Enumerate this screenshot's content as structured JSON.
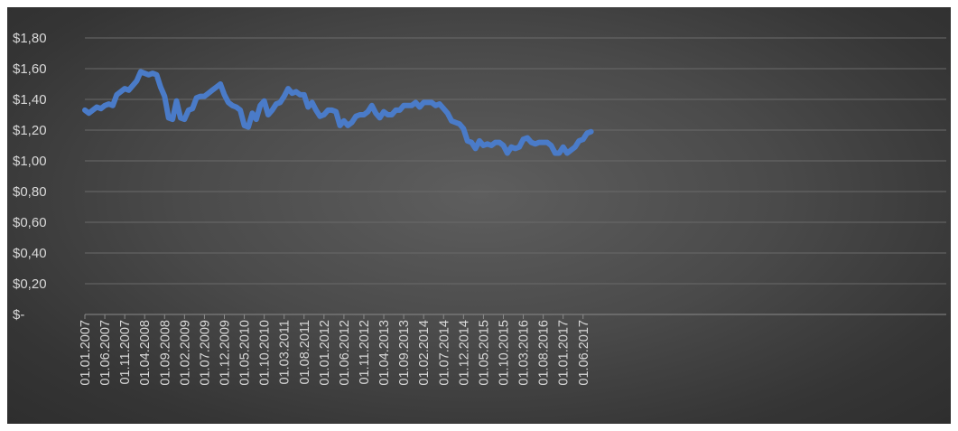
{
  "chart_data": {
    "type": "line",
    "title": "",
    "xlabel": "",
    "ylabel": "",
    "ylim": [
      0,
      1.8
    ],
    "grid": true,
    "legend": "none",
    "line_color": "#4a7bc8",
    "y_tick_labels": [
      "$-",
      "$0,20",
      "$0,40",
      "$0,60",
      "$0,80",
      "$1,00",
      "$1,20",
      "$1,40",
      "$1,60",
      "$1,80"
    ],
    "y_tick_values": [
      0,
      0.2,
      0.4,
      0.6,
      0.8,
      1.0,
      1.2,
      1.4,
      1.6,
      1.8
    ],
    "x_tick_labels": [
      "01.01.2007",
      "01.06.2007",
      "01.11.2007",
      "01.04.2008",
      "01.09.2008",
      "01.02.2009",
      "01.07.2009",
      "01.12.2009",
      "01.05.2010",
      "01.10.2010",
      "01.03.2011",
      "01.08.2011",
      "01.01.2012",
      "01.06.2012",
      "01.11.2012",
      "01.04.2013",
      "01.09.2013",
      "01.02.2014",
      "01.07.2014",
      "01.12.2014",
      "01.05.2015",
      "01.10.2015",
      "01.03.2016",
      "01.08.2016",
      "01.01.2017",
      "01.06.2017"
    ],
    "series": [
      {
        "values": [
          [
            "2007-01",
            1.33
          ],
          [
            "2007-02",
            1.31
          ],
          [
            "2007-03",
            1.33
          ],
          [
            "2007-04",
            1.35
          ],
          [
            "2007-05",
            1.34
          ],
          [
            "2007-06",
            1.36
          ],
          [
            "2007-07",
            1.37
          ],
          [
            "2007-08",
            1.36
          ],
          [
            "2007-09",
            1.43
          ],
          [
            "2007-10",
            1.45
          ],
          [
            "2007-11",
            1.47
          ],
          [
            "2007-12",
            1.46
          ],
          [
            "2008-01",
            1.49
          ],
          [
            "2008-02",
            1.52
          ],
          [
            "2008-03",
            1.58
          ],
          [
            "2008-04",
            1.57
          ],
          [
            "2008-05",
            1.56
          ],
          [
            "2008-06",
            1.57
          ],
          [
            "2008-07",
            1.56
          ],
          [
            "2008-08",
            1.48
          ],
          [
            "2008-09",
            1.42
          ],
          [
            "2008-10",
            1.28
          ],
          [
            "2008-11",
            1.27
          ],
          [
            "2008-12",
            1.39
          ],
          [
            "2009-01",
            1.28
          ],
          [
            "2009-02",
            1.27
          ],
          [
            "2009-03",
            1.33
          ],
          [
            "2009-04",
            1.34
          ],
          [
            "2009-05",
            1.41
          ],
          [
            "2009-06",
            1.42
          ],
          [
            "2009-07",
            1.42
          ],
          [
            "2009-08",
            1.44
          ],
          [
            "2009-09",
            1.46
          ],
          [
            "2009-10",
            1.48
          ],
          [
            "2009-11",
            1.5
          ],
          [
            "2009-12",
            1.43
          ],
          [
            "2010-01",
            1.38
          ],
          [
            "2010-02",
            1.36
          ],
          [
            "2010-03",
            1.35
          ],
          [
            "2010-04",
            1.33
          ],
          [
            "2010-05",
            1.23
          ],
          [
            "2010-06",
            1.22
          ],
          [
            "2010-07",
            1.31
          ],
          [
            "2010-08",
            1.27
          ],
          [
            "2010-09",
            1.36
          ],
          [
            "2010-10",
            1.39
          ],
          [
            "2010-11",
            1.3
          ],
          [
            "2010-12",
            1.33
          ],
          [
            "2011-01",
            1.37
          ],
          [
            "2011-02",
            1.38
          ],
          [
            "2011-03",
            1.42
          ],
          [
            "2011-04",
            1.47
          ],
          [
            "2011-05",
            1.44
          ],
          [
            "2011-06",
            1.45
          ],
          [
            "2011-07",
            1.43
          ],
          [
            "2011-08",
            1.43
          ],
          [
            "2011-09",
            1.35
          ],
          [
            "2011-10",
            1.38
          ],
          [
            "2011-11",
            1.33
          ],
          [
            "2011-12",
            1.29
          ],
          [
            "2012-01",
            1.3
          ],
          [
            "2012-02",
            1.33
          ],
          [
            "2012-03",
            1.33
          ],
          [
            "2012-04",
            1.32
          ],
          [
            "2012-05",
            1.23
          ],
          [
            "2012-06",
            1.26
          ],
          [
            "2012-07",
            1.23
          ],
          [
            "2012-08",
            1.25
          ],
          [
            "2012-09",
            1.29
          ],
          [
            "2012-10",
            1.3
          ],
          [
            "2012-11",
            1.3
          ],
          [
            "2012-12",
            1.32
          ],
          [
            "2013-01",
            1.36
          ],
          [
            "2013-02",
            1.31
          ],
          [
            "2013-03",
            1.28
          ],
          [
            "2013-04",
            1.32
          ],
          [
            "2013-05",
            1.3
          ],
          [
            "2013-06",
            1.3
          ],
          [
            "2013-07",
            1.33
          ],
          [
            "2013-08",
            1.33
          ],
          [
            "2013-09",
            1.36
          ],
          [
            "2013-10",
            1.36
          ],
          [
            "2013-11",
            1.36
          ],
          [
            "2013-12",
            1.38
          ],
          [
            "2014-01",
            1.35
          ],
          [
            "2014-02",
            1.38
          ],
          [
            "2014-03",
            1.38
          ],
          [
            "2014-04",
            1.38
          ],
          [
            "2014-05",
            1.36
          ],
          [
            "2014-06",
            1.37
          ],
          [
            "2014-07",
            1.34
          ],
          [
            "2014-08",
            1.31
          ],
          [
            "2014-09",
            1.26
          ],
          [
            "2014-10",
            1.25
          ],
          [
            "2014-11",
            1.24
          ],
          [
            "2014-12",
            1.21
          ],
          [
            "2015-01",
            1.13
          ],
          [
            "2015-02",
            1.12
          ],
          [
            "2015-03",
            1.08
          ],
          [
            "2015-04",
            1.13
          ],
          [
            "2015-05",
            1.1
          ],
          [
            "2015-06",
            1.11
          ],
          [
            "2015-07",
            1.1
          ],
          [
            "2015-08",
            1.12
          ],
          [
            "2015-09",
            1.12
          ],
          [
            "2015-10",
            1.1
          ],
          [
            "2015-11",
            1.05
          ],
          [
            "2015-12",
            1.09
          ],
          [
            "2016-01",
            1.08
          ],
          [
            "2016-02",
            1.09
          ],
          [
            "2016-03",
            1.14
          ],
          [
            "2016-04",
            1.15
          ],
          [
            "2016-05",
            1.12
          ],
          [
            "2016-06",
            1.11
          ],
          [
            "2016-07",
            1.12
          ],
          [
            "2016-08",
            1.12
          ],
          [
            "2016-09",
            1.12
          ],
          [
            "2016-10",
            1.1
          ],
          [
            "2016-11",
            1.05
          ],
          [
            "2016-12",
            1.05
          ],
          [
            "2017-01",
            1.09
          ],
          [
            "2017-02",
            1.05
          ],
          [
            "2017-03",
            1.07
          ],
          [
            "2017-04",
            1.09
          ],
          [
            "2017-05",
            1.13
          ],
          [
            "2017-06",
            1.14
          ],
          [
            "2017-07",
            1.18
          ],
          [
            "2017-08",
            1.19
          ]
        ]
      }
    ]
  }
}
